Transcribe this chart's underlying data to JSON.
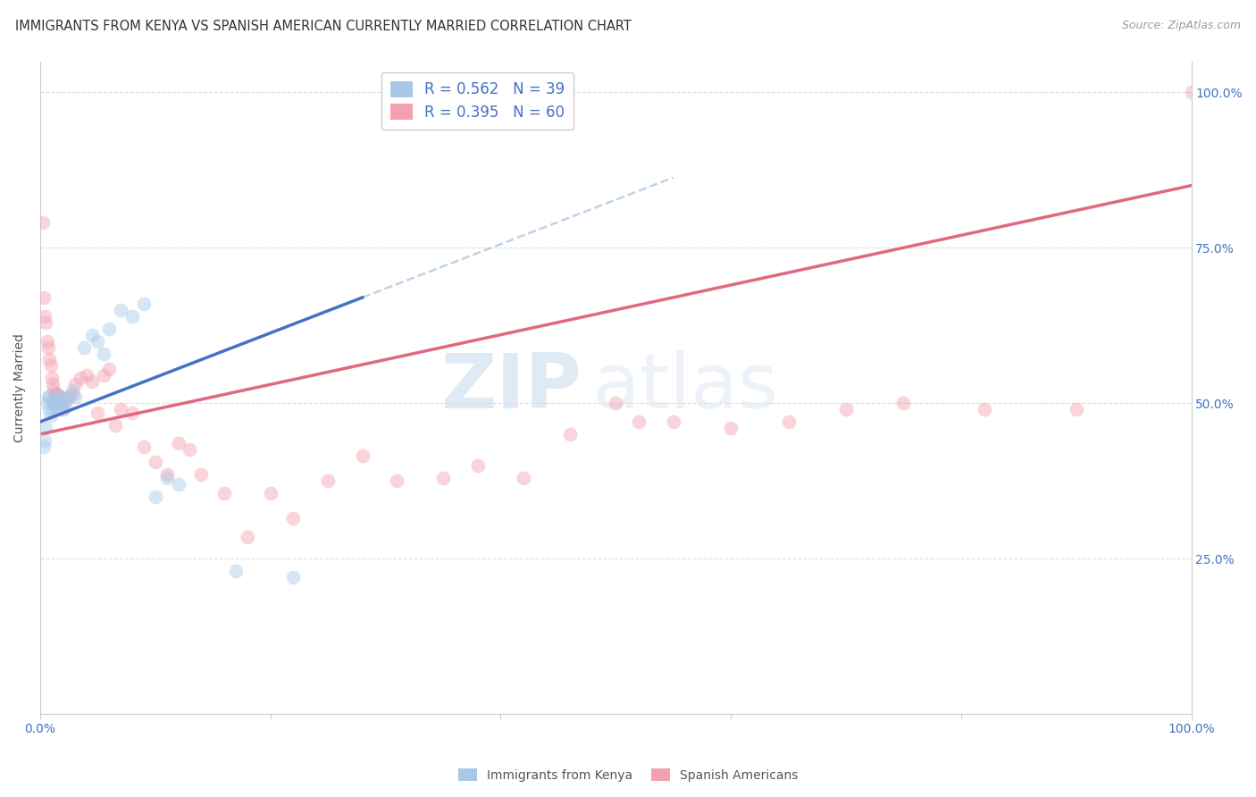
{
  "title": "IMMIGRANTS FROM KENYA VS SPANISH AMERICAN CURRENTLY MARRIED CORRELATION CHART",
  "source": "Source: ZipAtlas.com",
  "ylabel": "Currently Married",
  "kenya_color": "#a8c8e8",
  "spanish_color": "#f4a0b0",
  "kenya_line_color": "#4472c4",
  "spanish_line_color": "#e06880",
  "kenya_dashed_color": "#b0c8e0",
  "watermark_zip": "ZIP",
  "watermark_atlas": "atlas",
  "kenya_R": 0.562,
  "kenya_N": 39,
  "spanish_R": 0.395,
  "spanish_N": 60,
  "kenya_x": [
    0.003,
    0.004,
    0.005,
    0.006,
    0.007,
    0.008,
    0.008,
    0.009,
    0.01,
    0.011,
    0.012,
    0.013,
    0.013,
    0.014,
    0.015,
    0.015,
    0.016,
    0.016,
    0.017,
    0.018,
    0.019,
    0.02,
    0.022,
    0.025,
    0.028,
    0.03,
    0.038,
    0.045,
    0.05,
    0.055,
    0.06,
    0.07,
    0.08,
    0.09,
    0.1,
    0.11,
    0.12,
    0.17,
    0.22
  ],
  "kenya_y": [
    0.43,
    0.44,
    0.46,
    0.5,
    0.51,
    0.51,
    0.49,
    0.48,
    0.5,
    0.505,
    0.5,
    0.49,
    0.5,
    0.5,
    0.49,
    0.5,
    0.5,
    0.51,
    0.51,
    0.49,
    0.5,
    0.5,
    0.495,
    0.51,
    0.52,
    0.51,
    0.59,
    0.61,
    0.6,
    0.58,
    0.62,
    0.65,
    0.64,
    0.66,
    0.35,
    0.38,
    0.37,
    0.23,
    0.22
  ],
  "spanish_x": [
    0.002,
    0.003,
    0.004,
    0.005,
    0.006,
    0.007,
    0.008,
    0.009,
    0.01,
    0.011,
    0.012,
    0.013,
    0.014,
    0.015,
    0.015,
    0.016,
    0.017,
    0.018,
    0.019,
    0.02,
    0.022,
    0.025,
    0.028,
    0.03,
    0.035,
    0.04,
    0.045,
    0.05,
    0.055,
    0.06,
    0.065,
    0.07,
    0.08,
    0.09,
    0.1,
    0.11,
    0.12,
    0.13,
    0.14,
    0.16,
    0.18,
    0.2,
    0.22,
    0.25,
    0.28,
    0.31,
    0.35,
    0.38,
    0.42,
    0.46,
    0.5,
    0.52,
    0.55,
    0.6,
    0.65,
    0.7,
    0.75,
    0.82,
    0.9,
    1.0
  ],
  "spanish_y": [
    0.79,
    0.67,
    0.64,
    0.63,
    0.6,
    0.59,
    0.57,
    0.56,
    0.54,
    0.53,
    0.52,
    0.515,
    0.51,
    0.515,
    0.505,
    0.51,
    0.51,
    0.505,
    0.5,
    0.49,
    0.505,
    0.51,
    0.515,
    0.53,
    0.54,
    0.545,
    0.535,
    0.485,
    0.545,
    0.555,
    0.465,
    0.49,
    0.485,
    0.43,
    0.405,
    0.385,
    0.435,
    0.425,
    0.385,
    0.355,
    0.285,
    0.355,
    0.315,
    0.375,
    0.415,
    0.375,
    0.38,
    0.4,
    0.38,
    0.45,
    0.5,
    0.47,
    0.47,
    0.46,
    0.47,
    0.49,
    0.5,
    0.49,
    0.49,
    1.0
  ],
  "xlim": [
    0.0,
    1.0
  ],
  "ylim": [
    0.0,
    1.05
  ],
  "background_color": "#ffffff",
  "grid_color": "#dddddd",
  "marker_size": 130,
  "marker_alpha": 0.45,
  "ytick_right_color": "#4472c4",
  "label_color": "#555555"
}
